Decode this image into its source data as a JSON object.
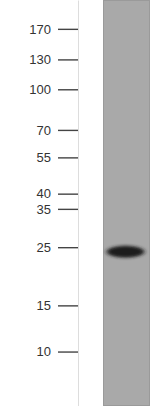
{
  "chart_data": {
    "type": "blot",
    "categories": [
      null
    ],
    "values": [
      24
    ],
    "color": "#1c1c1c",
    "log": "y",
    "ylim": [
      6.2,
      219
    ],
    "yticks": [
      170,
      130,
      100,
      70,
      55,
      40,
      35,
      25,
      15,
      10
    ]
  }
}
